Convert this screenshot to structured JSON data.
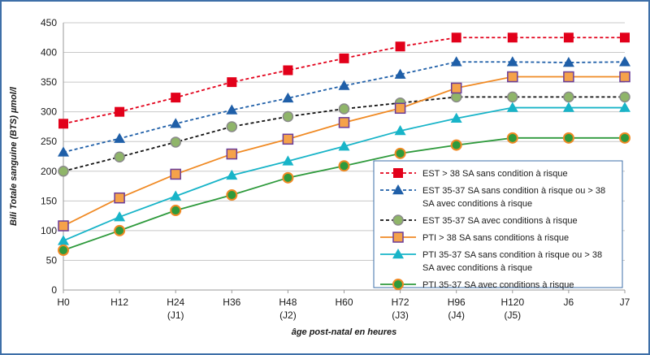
{
  "chart_data": {
    "type": "line",
    "title": "",
    "ylabel": "Bili Totale sanguine (BTS) µmol/l",
    "xlabel": "âge post-natal en heures",
    "ylim": [
      0,
      450
    ],
    "yticks": [
      0,
      50,
      100,
      150,
      200,
      250,
      300,
      350,
      400,
      450
    ],
    "grid": true,
    "legend_position": "right",
    "categories": [
      "H0",
      "H12",
      "H24",
      "H36",
      "H48",
      "H60",
      "H72",
      "H96",
      "H120",
      "J6",
      "J7"
    ],
    "category_sublabels": [
      "",
      "",
      "(J1)",
      "",
      "(J2)",
      "",
      "(J3)",
      "(J4)",
      "(J5)",
      "",
      ""
    ],
    "series": [
      {
        "name": [
          "EST > 38 SA sans condition à risque"
        ],
        "color": "#e2001a",
        "marker": "square",
        "dash": true,
        "values": [
          280,
          300,
          324,
          350,
          370,
          390,
          410,
          425,
          425,
          425,
          425
        ]
      },
      {
        "name": [
          "EST 35-37 SA sans condition à risque ou > 38",
          "SA avec conditions à risque"
        ],
        "color": "#1f5fa8",
        "marker": "triangle",
        "dash": true,
        "values": [
          232,
          255,
          280,
          303,
          323,
          344,
          363,
          384,
          384,
          383,
          384
        ]
      },
      {
        "name": [
          "EST 35-37 SA avec conditions à risque"
        ],
        "color": "#111111",
        "marker": "circle-green",
        "dash": true,
        "values": [
          200,
          224,
          249,
          275,
          292,
          305,
          315,
          325,
          325,
          325,
          325
        ]
      },
      {
        "name": [
          "PTI > 38 SA sans conditions à risque"
        ],
        "color": "#f08a24",
        "marker": "square-orange",
        "dash": false,
        "values": [
          108,
          155,
          195,
          229,
          254,
          282,
          306,
          340,
          359,
          359,
          359
        ]
      },
      {
        "name": [
          "PTI 35-37 SA sans condition à risque ou > 38",
          "SA avec conditions à risque"
        ],
        "color": "#18b4c8",
        "marker": "triangle",
        "dash": false,
        "values": [
          83,
          123,
          158,
          193,
          217,
          242,
          268,
          289,
          307,
          307,
          307
        ]
      },
      {
        "name": [
          "PTI 35-37 SA avec conditions à risque"
        ],
        "color": "#2e9a3c",
        "marker": "circle-orange",
        "dash": false,
        "values": [
          67,
          100,
          134,
          160,
          189,
          209,
          230,
          244,
          256,
          256,
          256
        ]
      }
    ]
  }
}
